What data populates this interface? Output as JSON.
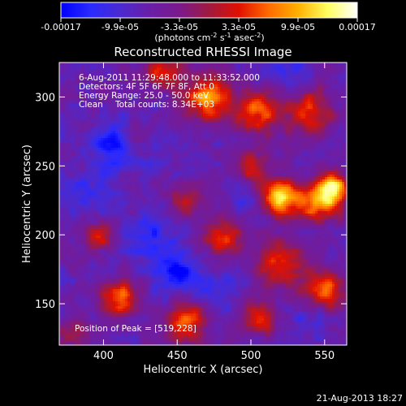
{
  "colors": {
    "background": "#000000",
    "foreground": "#ffffff",
    "colormap": [
      "#1f2cff",
      "#4d2bd6",
      "#6a1ea8",
      "#7a1a8c",
      "#ad1f2a",
      "#ff2a00",
      "#ff7a00",
      "#ffc000",
      "#ffff8a",
      "#ffffff"
    ]
  },
  "colorbar": {
    "tick_labels": [
      "-0.00017",
      "-9.9e-05",
      "-3.3e-05",
      "3.3e-05",
      "9.9e-05",
      "0.00017"
    ],
    "unit_prefix": "(photons cm",
    "unit_exp1": "-2",
    "unit_mid": " s",
    "unit_exp2": "-1",
    "unit_mid2": " asec",
    "unit_exp3": "-2",
    "unit_suffix": ")"
  },
  "chart_data": {
    "type": "heatmap",
    "title": "Reconstructed RHESSI Image",
    "xlabel": "Heliocentric X (arcsec)",
    "ylabel": "Heliocentric Y (arcsec)",
    "xlim": [
      370,
      565
    ],
    "ylim": [
      120,
      325
    ],
    "x_ticks": [
      400,
      450,
      500,
      550
    ],
    "y_ticks": [
      150,
      200,
      250,
      300
    ],
    "clim": [
      -0.00017,
      0.00017
    ],
    "peak": [
      519,
      228
    ],
    "hot_spots": [
      {
        "x": 519,
        "y": 228,
        "amp": 1.0,
        "s": 9
      },
      {
        "x": 470,
        "y": 300,
        "amp": 0.85,
        "s": 12
      },
      {
        "x": 545,
        "y": 225,
        "amp": 0.8,
        "s": 10
      },
      {
        "x": 555,
        "y": 235,
        "amp": 0.85,
        "s": 8
      },
      {
        "x": 505,
        "y": 290,
        "amp": 0.7,
        "s": 11
      },
      {
        "x": 540,
        "y": 290,
        "amp": 0.65,
        "s": 11
      },
      {
        "x": 410,
        "y": 155,
        "amp": 0.75,
        "s": 9
      },
      {
        "x": 455,
        "y": 138,
        "amp": 0.7,
        "s": 11
      },
      {
        "x": 480,
        "y": 200,
        "amp": 0.6,
        "s": 10
      },
      {
        "x": 520,
        "y": 180,
        "amp": 0.65,
        "s": 12
      },
      {
        "x": 550,
        "y": 160,
        "amp": 0.7,
        "s": 10
      },
      {
        "x": 505,
        "y": 140,
        "amp": 0.55,
        "s": 9
      },
      {
        "x": 440,
        "y": 320,
        "amp": 0.55,
        "s": 9
      },
      {
        "x": 395,
        "y": 200,
        "amp": 0.5,
        "s": 8
      },
      {
        "x": 455,
        "y": 225,
        "amp": 0.45,
        "s": 8
      },
      {
        "x": 420,
        "y": 270,
        "amp": 0.35,
        "s": 8
      },
      {
        "x": 380,
        "y": 130,
        "amp": 0.45,
        "s": 8
      },
      {
        "x": 500,
        "y": 250,
        "amp": 0.5,
        "s": 9
      }
    ],
    "cold_spots": [
      {
        "x": 410,
        "y": 265,
        "amp": 0.9,
        "s": 12
      },
      {
        "x": 450,
        "y": 172,
        "amp": 0.8,
        "s": 11
      },
      {
        "x": 430,
        "y": 200,
        "amp": 0.55,
        "s": 12
      },
      {
        "x": 390,
        "y": 230,
        "amp": 0.5,
        "s": 11
      },
      {
        "x": 480,
        "y": 160,
        "amp": 0.45,
        "s": 10
      },
      {
        "x": 525,
        "y": 320,
        "amp": 0.45,
        "s": 9
      },
      {
        "x": 495,
        "y": 225,
        "amp": 0.4,
        "s": 8
      },
      {
        "x": 540,
        "y": 140,
        "amp": 0.35,
        "s": 9
      }
    ]
  },
  "annotation": {
    "time_range": "6-Aug-2011 11:29:48.000 to 11:33:52.000",
    "detectors": "Detectors: 4F 5F 6F 7F 8F, Att 0",
    "energy": "Energy Range: 25.0 - 50.0 keV",
    "clean_label": "Clean",
    "total_counts": "Total counts: 8.34E+03",
    "peak_position": "Position of Peak = [519,228]"
  },
  "footer": {
    "date": "21-Aug-2013 18:27"
  }
}
